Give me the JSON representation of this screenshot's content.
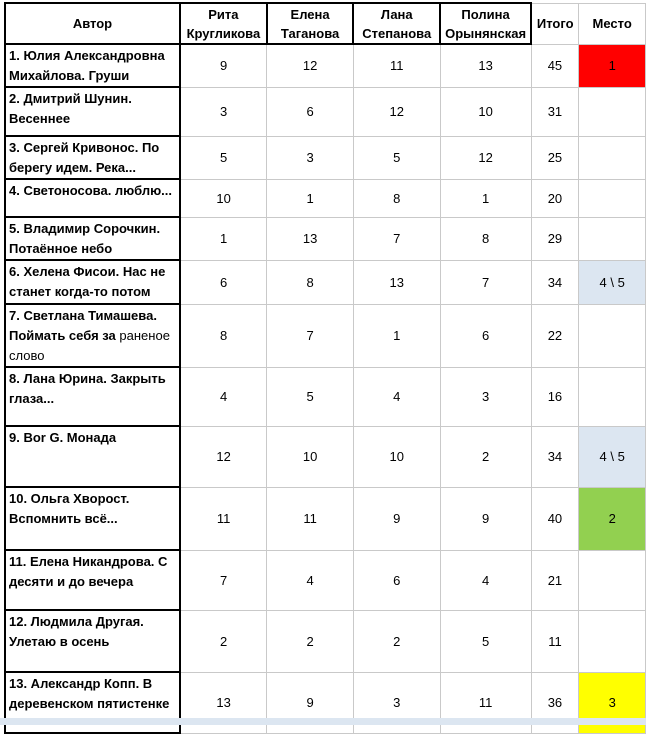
{
  "headers": {
    "author": "Автор",
    "judges": [
      "Рита Кругликова",
      "Елена Таганова",
      "Лана Степанова",
      "Полина Орынянская"
    ],
    "total": "Итого",
    "place": "Место"
  },
  "colors": {
    "first": "#ff0000",
    "second": "#92d050",
    "third": "#ffff00",
    "shared": "#dce6f1"
  },
  "rows": [
    {
      "author": "1.  Юлия Александровна Михайлова. Груши",
      "s1": "9",
      "s2": "12",
      "s3": "11",
      "s4": "13",
      "total": "45",
      "place": "1",
      "hl": "first"
    },
    {
      "author": "2.  Дмитрий Шунин. Весеннее",
      "s1": "3",
      "s2": "6",
      "s3": "12",
      "s4": "10",
      "total": "31",
      "place": "",
      "hl": ""
    },
    {
      "author": "3. Сергей Кривонос. По берегу идем. Река...",
      "s1": "5",
      "s2": "3",
      "s3": "5",
      "s4": "12",
      "total": "25",
      "place": "",
      "hl": ""
    },
    {
      "author": "4. Светоносова. люблю...",
      "s1": "10",
      "s2": "1",
      "s3": "8",
      "s4": "1",
      "total": "20",
      "place": "",
      "hl": ""
    },
    {
      "author": "5.  Владимир Сорочкин. Потаённое небо",
      "s1": "1",
      "s2": "13",
      "s3": "7",
      "s4": "8",
      "total": "29",
      "place": "",
      "hl": ""
    },
    {
      "author": "6.  Хелена Фисои. Нас не станет когда-то потом",
      "s1": "6",
      "s2": "8",
      "s3": "13",
      "s4": "7",
      "total": "34",
      "place": "4 \\ 5",
      "hl": "shared"
    },
    {
      "author": "7. Светлана Тимашева. Поймать себя за",
      "author_tail": "раненое слово",
      "s1": "8",
      "s2": "7",
      "s3": "1",
      "s4": "6",
      "total": "22",
      "place": "",
      "hl": ""
    },
    {
      "author": " 8.  Лана Юрина. Закрыть глаза...",
      "s1": "4",
      "s2": "5",
      "s3": "4",
      "s4": "3",
      "total": "16",
      "place": "",
      "hl": ""
    },
    {
      "author": "9.  Bor G. Монада",
      "s1": "12",
      "s2": "10",
      "s3": "10",
      "s4": "2",
      "total": "34",
      "place": "4 \\ 5",
      "hl": "shared"
    },
    {
      "author": "10. Ольга Хворост. Вспомнить всё...",
      "s1": "11",
      "s2": "11",
      "s3": "9",
      "s4": "9",
      "total": "40",
      "place": "2",
      "hl": "second"
    },
    {
      "author": "11. Елена Никандрова. С десяти и до вечера",
      "s1": "7",
      "s2": "4",
      "s3": "6",
      "s4": "4",
      "total": "21",
      "place": "",
      "hl": ""
    },
    {
      "author": "12. Людмила Другая. Улетаю в осень",
      "s1": "2",
      "s2": "2",
      "s3": "2",
      "s4": "5",
      "total": "11",
      "place": "",
      "hl": ""
    },
    {
      "author": "13. Александр Копп. В деревенском пятистенке",
      "s1": "13",
      "s2": "9",
      "s3": "3",
      "s4": "11",
      "total": "36",
      "place": "3",
      "hl": "third"
    }
  ]
}
